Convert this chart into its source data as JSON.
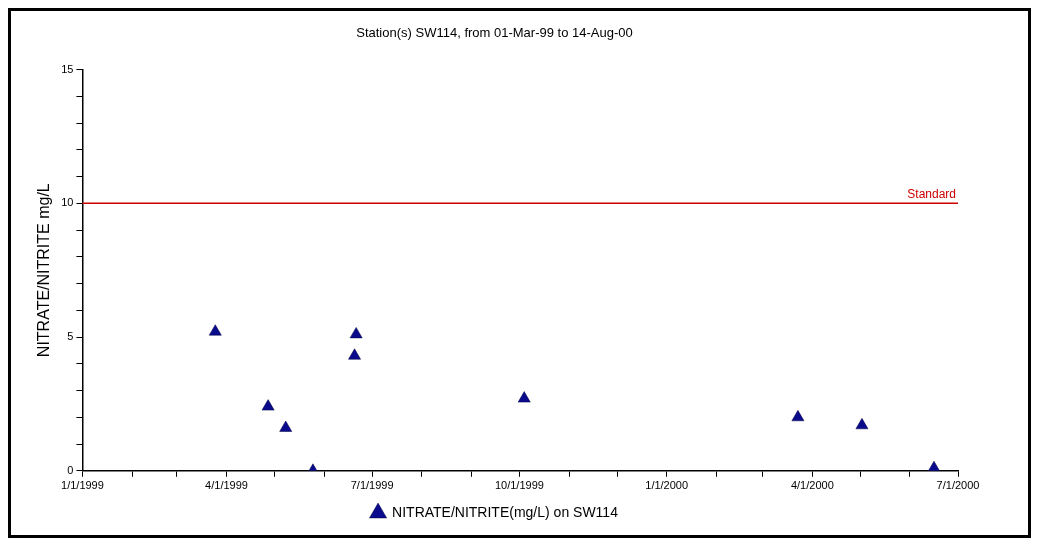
{
  "chart_data": {
    "type": "scatter",
    "title": "Station(s) SW114, from 01-Mar-99 to 14-Aug-00",
    "ylabel": "NITRATE/NITRITE mg/L",
    "series": [
      {
        "name": "NITRATE/NITRITE(mg/L) on SW114",
        "color": "#0a0a8c",
        "x": [
          "1999-03-25",
          "1999-04-27",
          "1999-05-08",
          "1999-05-25",
          "1999-06-20",
          "1999-06-21",
          "1999-10-04",
          "2000-03-23",
          "2000-05-02",
          "2000-06-16"
        ],
        "values": [
          5.2,
          2.4,
          1.6,
          0,
          4.3,
          5.1,
          2.7,
          2.0,
          1.7,
          0.1
        ]
      }
    ],
    "xlim": [
      "1999-01-01",
      "2000-07-01"
    ],
    "xticks": [
      {
        "value": "1999-01-01",
        "label": "1/1/1999"
      },
      {
        "value": "1999-02-01",
        "label": null
      },
      {
        "value": "1999-03-01",
        "label": null
      },
      {
        "value": "1999-04-01",
        "label": "4/1/1999"
      },
      {
        "value": "1999-05-01",
        "label": null
      },
      {
        "value": "1999-06-01",
        "label": null
      },
      {
        "value": "1999-07-01",
        "label": "7/1/1999"
      },
      {
        "value": "1999-08-01",
        "label": null
      },
      {
        "value": "1999-09-01",
        "label": null
      },
      {
        "value": "1999-10-01",
        "label": "10/1/1999"
      },
      {
        "value": "1999-11-01",
        "label": null
      },
      {
        "value": "1999-12-01",
        "label": null
      },
      {
        "value": "2000-01-01",
        "label": "1/1/2000"
      },
      {
        "value": "2000-02-01",
        "label": null
      },
      {
        "value": "2000-03-01",
        "label": null
      },
      {
        "value": "2000-04-01",
        "label": "4/1/2000"
      },
      {
        "value": "2000-05-01",
        "label": null
      },
      {
        "value": "2000-06-01",
        "label": null
      },
      {
        "value": "2000-07-01",
        "label": "7/1/2000"
      }
    ],
    "ylim": [
      0,
      15
    ],
    "yticks": [
      0,
      {
        "value": 1,
        "label": null
      },
      {
        "value": 2,
        "label": null
      },
      {
        "value": 3,
        "label": null
      },
      {
        "value": 4,
        "label": null
      },
      5,
      {
        "value": 6,
        "label": null
      },
      {
        "value": 7,
        "label": null
      },
      {
        "value": 8,
        "label": null
      },
      {
        "value": 9,
        "label": null
      },
      10,
      {
        "value": 11,
        "label": null
      },
      {
        "value": 12,
        "label": null
      },
      {
        "value": 13,
        "label": null
      },
      {
        "value": 14,
        "label": null
      },
      15
    ],
    "ref_lines": [
      {
        "axis": "y",
        "value": 10,
        "label": "Standard",
        "color": "#cc0000"
      }
    ],
    "grid": false,
    "legend": "bottom",
    "marker": "triangle"
  }
}
